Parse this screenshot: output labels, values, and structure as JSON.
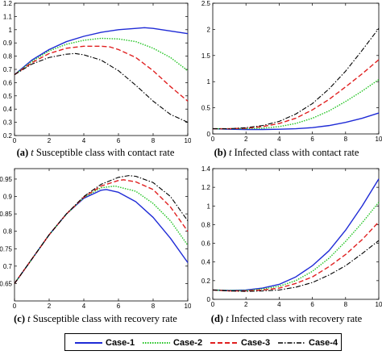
{
  "chart_data": [
    {
      "type": "line",
      "panel": "a",
      "caption_letter": "(a)",
      "caption_var": "t",
      "caption_text": "Susceptible class with contact rate",
      "xlim": [
        0,
        10
      ],
      "ylim": [
        0.2,
        1.2
      ],
      "xticks": [
        0,
        2,
        4,
        6,
        8,
        10
      ],
      "yticks": [
        0.2,
        0.3,
        0.4,
        0.5,
        0.6,
        0.7,
        0.8,
        0.9,
        1.0,
        1.1,
        1.2
      ],
      "ytick_labels": [
        "0.2",
        "0.3",
        "0.4",
        "0.5",
        "0.6",
        "0.7",
        "0.8",
        "0.9",
        "1",
        "1.1",
        "1.2"
      ],
      "series": [
        {
          "name": "Case-1",
          "x": [
            0,
            1,
            2,
            3,
            4,
            5,
            6,
            7,
            7.5,
            8,
            9,
            10
          ],
          "y": [
            0.66,
            0.77,
            0.85,
            0.91,
            0.95,
            0.98,
            1.0,
            1.01,
            1.015,
            1.01,
            0.99,
            0.97
          ]
        },
        {
          "name": "Case-2",
          "x": [
            0,
            1,
            2,
            3,
            4,
            5,
            6,
            7,
            8,
            9,
            10
          ],
          "y": [
            0.66,
            0.76,
            0.84,
            0.89,
            0.92,
            0.935,
            0.93,
            0.91,
            0.86,
            0.79,
            0.69
          ]
        },
        {
          "name": "Case-3",
          "x": [
            0,
            1,
            2,
            3,
            4,
            5,
            5.5,
            6,
            7,
            8,
            9,
            10
          ],
          "y": [
            0.66,
            0.75,
            0.82,
            0.86,
            0.875,
            0.875,
            0.87,
            0.85,
            0.79,
            0.69,
            0.57,
            0.46
          ]
        },
        {
          "name": "Case-4",
          "x": [
            0,
            1,
            2,
            3,
            3.5,
            4,
            5,
            6,
            7,
            8,
            9,
            10
          ],
          "y": [
            0.66,
            0.74,
            0.79,
            0.815,
            0.82,
            0.81,
            0.77,
            0.69,
            0.58,
            0.46,
            0.36,
            0.3
          ]
        }
      ]
    },
    {
      "type": "line",
      "panel": "b",
      "caption_letter": "(b)",
      "caption_var": "t",
      "caption_text": "Infected class with contact rate",
      "xlim": [
        0,
        10
      ],
      "ylim": [
        0,
        2.5
      ],
      "xticks": [
        0,
        2,
        4,
        6,
        8,
        10
      ],
      "yticks": [
        0,
        0.5,
        1,
        1.5,
        2,
        2.5
      ],
      "ytick_labels": [
        "0",
        "0.5",
        "1",
        "1.5",
        "2",
        "2.5"
      ],
      "series": [
        {
          "name": "Case-1",
          "x": [
            0,
            1,
            2,
            3,
            4,
            5,
            6,
            7,
            8,
            9,
            10
          ],
          "y": [
            0.1,
            0.09,
            0.085,
            0.085,
            0.09,
            0.1,
            0.12,
            0.16,
            0.22,
            0.3,
            0.4
          ]
        },
        {
          "name": "Case-2",
          "x": [
            0,
            1,
            2,
            3,
            4,
            5,
            6,
            7,
            8,
            9,
            10
          ],
          "y": [
            0.1,
            0.1,
            0.1,
            0.11,
            0.14,
            0.2,
            0.3,
            0.44,
            0.62,
            0.82,
            1.04
          ]
        },
        {
          "name": "Case-3",
          "x": [
            0,
            1,
            2,
            3,
            4,
            5,
            6,
            7,
            8,
            9,
            10
          ],
          "y": [
            0.1,
            0.1,
            0.11,
            0.14,
            0.2,
            0.3,
            0.46,
            0.66,
            0.9,
            1.15,
            1.42
          ]
        },
        {
          "name": "Case-4",
          "x": [
            0,
            1,
            2,
            3,
            4,
            5,
            6,
            7,
            8,
            9,
            10
          ],
          "y": [
            0.1,
            0.1,
            0.12,
            0.16,
            0.24,
            0.38,
            0.58,
            0.86,
            1.2,
            1.6,
            2.02
          ]
        }
      ]
    },
    {
      "type": "line",
      "panel": "c",
      "caption_letter": "(c)",
      "caption_var": "t",
      "caption_text": "Susceptible class with recovery rate",
      "xlim": [
        0,
        10
      ],
      "ylim": [
        0.6,
        0.98
      ],
      "xticks": [
        0,
        2,
        4,
        6,
        8,
        10
      ],
      "yticks": [
        0.65,
        0.7,
        0.75,
        0.8,
        0.85,
        0.9,
        0.95
      ],
      "ytick_labels": [
        "0.65",
        "0.7",
        "0.75",
        "0.8",
        "0.85",
        "0.9",
        "0.95"
      ],
      "series": [
        {
          "name": "Case-1",
          "x": [
            0,
            1,
            2,
            3,
            4,
            5,
            5.3,
            6,
            7,
            8,
            9,
            10
          ],
          "y": [
            0.65,
            0.72,
            0.79,
            0.85,
            0.895,
            0.918,
            0.92,
            0.912,
            0.885,
            0.84,
            0.78,
            0.71
          ]
        },
        {
          "name": "Case-2",
          "x": [
            0,
            1,
            2,
            3,
            4,
            5,
            5.8,
            7,
            8,
            9,
            10
          ],
          "y": [
            0.65,
            0.72,
            0.79,
            0.85,
            0.897,
            0.925,
            0.93,
            0.915,
            0.88,
            0.83,
            0.76
          ]
        },
        {
          "name": "Case-3",
          "x": [
            0,
            1,
            2,
            3,
            4,
            5,
            6,
            6.3,
            7,
            8,
            9,
            10
          ],
          "y": [
            0.65,
            0.72,
            0.79,
            0.85,
            0.898,
            0.93,
            0.946,
            0.948,
            0.942,
            0.92,
            0.87,
            0.8
          ]
        },
        {
          "name": "Case-4",
          "x": [
            0,
            1,
            2,
            3,
            4,
            5,
            6,
            6.6,
            7,
            8,
            9,
            10
          ],
          "y": [
            0.65,
            0.72,
            0.79,
            0.85,
            0.9,
            0.935,
            0.955,
            0.96,
            0.958,
            0.94,
            0.9,
            0.83
          ]
        }
      ]
    },
    {
      "type": "line",
      "panel": "d",
      "caption_letter": "(d)",
      "caption_var": "t",
      "caption_text": "Infected class with recovery rate",
      "xlim": [
        0,
        10
      ],
      "ylim": [
        0,
        1.4
      ],
      "xticks": [
        0,
        2,
        4,
        6,
        8,
        10
      ],
      "yticks": [
        0,
        0.2,
        0.4,
        0.6,
        0.8,
        1.0,
        1.2,
        1.4
      ],
      "ytick_labels": [
        "0",
        "0.2",
        "0.4",
        "0.6",
        "0.8",
        "1",
        "1.2",
        "1.4"
      ],
      "series": [
        {
          "name": "Case-1",
          "x": [
            0,
            1,
            2,
            3,
            4,
            5,
            6,
            7,
            8,
            9,
            10
          ],
          "y": [
            0.1,
            0.095,
            0.1,
            0.12,
            0.16,
            0.24,
            0.36,
            0.52,
            0.74,
            1.0,
            1.29
          ]
        },
        {
          "name": "Case-2",
          "x": [
            0,
            1,
            2,
            3,
            4,
            5,
            6,
            7,
            8,
            9,
            10
          ],
          "y": [
            0.1,
            0.095,
            0.095,
            0.11,
            0.14,
            0.2,
            0.3,
            0.44,
            0.62,
            0.82,
            1.04
          ]
        },
        {
          "name": "Case-3",
          "x": [
            0,
            1,
            2,
            3,
            4,
            5,
            6,
            7,
            8,
            9,
            10
          ],
          "y": [
            0.1,
            0.09,
            0.09,
            0.1,
            0.12,
            0.17,
            0.24,
            0.35,
            0.48,
            0.64,
            0.83
          ]
        },
        {
          "name": "Case-4",
          "x": [
            0,
            1,
            2,
            3,
            4,
            5,
            6,
            7,
            8,
            9,
            10
          ],
          "y": [
            0.1,
            0.09,
            0.085,
            0.09,
            0.1,
            0.13,
            0.18,
            0.26,
            0.36,
            0.49,
            0.63
          ]
        }
      ]
    }
  ],
  "legend": {
    "entries": [
      {
        "name": "Case-1",
        "color": "#1f2bd6",
        "dash": "solid"
      },
      {
        "name": "Case-2",
        "color": "#22c422",
        "dash": "dotted"
      },
      {
        "name": "Case-3",
        "color": "#e02020",
        "dash": "dashed"
      },
      {
        "name": "Case-4",
        "color": "#000000",
        "dash": "dashdot"
      }
    ]
  }
}
